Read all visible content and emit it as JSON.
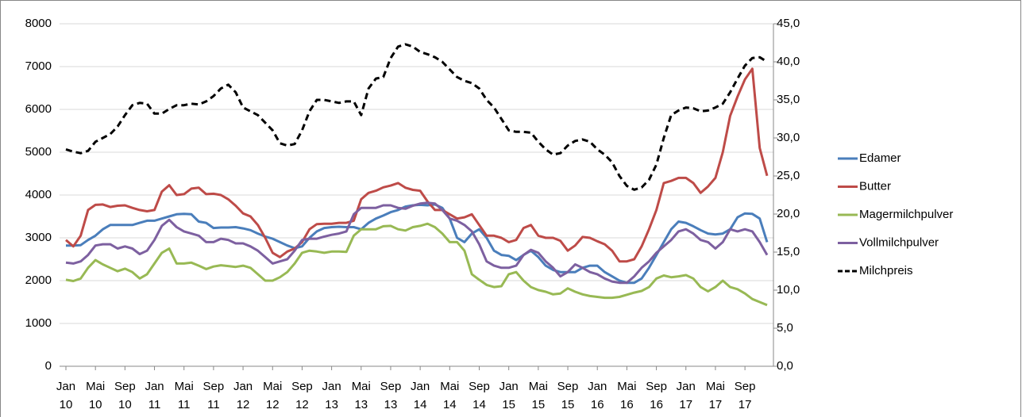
{
  "chart_data": {
    "type": "line",
    "categories": [
      "Jan 10",
      null,
      null,
      null,
      "Mai 10",
      null,
      null,
      null,
      "Sep 10",
      null,
      null,
      null,
      "Jan 11",
      null,
      null,
      null,
      "Mai 11",
      null,
      null,
      null,
      "Sep 11",
      null,
      null,
      null,
      "Jan 12",
      null,
      null,
      null,
      "Mai 12",
      null,
      null,
      null,
      "Sep 12",
      null,
      null,
      null,
      "Jan 13",
      null,
      null,
      null,
      "Mai 13",
      null,
      null,
      null,
      "Sep 13",
      null,
      null,
      null,
      "Jan 14",
      null,
      null,
      null,
      "Mai 14",
      null,
      null,
      null,
      "Sep 14",
      null,
      null,
      null,
      "Jan 15",
      null,
      null,
      null,
      "Mai 15",
      null,
      null,
      null,
      "Sep 15",
      null,
      null,
      null,
      "Jan 16",
      null,
      null,
      null,
      "Mai 16",
      null,
      null,
      null,
      "Sep 16",
      null,
      null,
      null,
      "Jan 17",
      null,
      null,
      null,
      "Mai 17",
      null,
      null,
      null,
      "Sep 17",
      null,
      null,
      null
    ],
    "ylim": [
      0,
      8000
    ],
    "yticks": [
      0,
      1000,
      2000,
      3000,
      4000,
      5000,
      6000,
      7000,
      8000
    ],
    "y2lim": [
      0,
      45
    ],
    "y2ticks": [
      {
        "value": 0,
        "label": "0,0"
      },
      {
        "value": 5,
        "label": "5,0"
      },
      {
        "value": 10,
        "label": "10,0"
      },
      {
        "value": 15,
        "label": "15,0"
      },
      {
        "value": 20,
        "label": "20,0"
      },
      {
        "value": 25,
        "label": "25,0"
      },
      {
        "value": 30,
        "label": "30,0"
      },
      {
        "value": 35,
        "label": "35,0"
      },
      {
        "value": 40,
        "label": "40,0"
      },
      {
        "value": 45,
        "label": "45,0"
      }
    ],
    "legend": "right",
    "series": [
      {
        "name": "Edamer",
        "color": "#4a7ebb",
        "values": [
          2820,
          2820,
          2830,
          2950,
          3050,
          3200,
          3300,
          3300,
          3300,
          3300,
          3350,
          3400,
          3400,
          3450,
          3500,
          3550,
          3560,
          3550,
          3380,
          3350,
          3230,
          3240,
          3240,
          3250,
          3220,
          3180,
          3100,
          3030,
          2980,
          2900,
          2820,
          2760,
          2800,
          3000,
          3150,
          3230,
          3250,
          3260,
          3250,
          3250,
          3200,
          3350,
          3450,
          3520,
          3600,
          3650,
          3730,
          3760,
          3770,
          3760,
          3780,
          3700,
          3450,
          3000,
          2900,
          3100,
          3200,
          3000,
          2700,
          2600,
          2580,
          2480,
          2600,
          2700,
          2550,
          2350,
          2250,
          2200,
          2200,
          2200,
          2300,
          2350,
          2350,
          2200,
          2100,
          2000,
          1950,
          1950,
          2050,
          2300,
          2600,
          2900,
          3200,
          3380,
          3350,
          3270,
          3180,
          3100,
          3080,
          3100,
          3200,
          3480,
          3570,
          3560,
          3450,
          2900
        ]
      },
      {
        "name": "Butter",
        "color": "#be4b48",
        "values": [
          2950,
          2800,
          3050,
          3650,
          3770,
          3780,
          3720,
          3750,
          3760,
          3700,
          3650,
          3620,
          3650,
          4080,
          4230,
          4000,
          4020,
          4150,
          4170,
          4020,
          4030,
          4000,
          3900,
          3750,
          3570,
          3500,
          3300,
          3000,
          2650,
          2550,
          2680,
          2750,
          2900,
          3200,
          3320,
          3330,
          3330,
          3350,
          3350,
          3400,
          3900,
          4050,
          4100,
          4180,
          4220,
          4280,
          4170,
          4120,
          4100,
          3850,
          3650,
          3650,
          3550,
          3450,
          3480,
          3550,
          3300,
          3050,
          3050,
          3000,
          2900,
          2950,
          3230,
          3300,
          3050,
          3000,
          3000,
          2930,
          2700,
          2820,
          3020,
          3000,
          2920,
          2850,
          2700,
          2450,
          2450,
          2500,
          2800,
          3200,
          3650,
          4280,
          4330,
          4400,
          4400,
          4280,
          4050,
          4200,
          4400,
          5000,
          5850,
          6300,
          6700,
          6950,
          5100,
          4450
        ]
      },
      {
        "name": "Magermilchpulver",
        "color": "#98b954",
        "values": [
          2020,
          1990,
          2050,
          2300,
          2480,
          2380,
          2300,
          2220,
          2280,
          2200,
          2050,
          2150,
          2400,
          2650,
          2750,
          2400,
          2400,
          2420,
          2350,
          2270,
          2330,
          2360,
          2340,
          2320,
          2350,
          2300,
          2150,
          2000,
          2000,
          2080,
          2200,
          2400,
          2650,
          2700,
          2680,
          2650,
          2680,
          2680,
          2670,
          3050,
          3200,
          3200,
          3200,
          3270,
          3280,
          3200,
          3170,
          3250,
          3280,
          3330,
          3250,
          3100,
          2900,
          2900,
          2700,
          2150,
          2020,
          1900,
          1850,
          1870,
          2150,
          2200,
          2000,
          1850,
          1780,
          1740,
          1680,
          1700,
          1820,
          1740,
          1680,
          1640,
          1620,
          1600,
          1600,
          1620,
          1670,
          1720,
          1760,
          1850,
          2050,
          2120,
          2080,
          2100,
          2130,
          2050,
          1850,
          1750,
          1850,
          2000,
          1850,
          1800,
          1700,
          1570,
          1500,
          1430
        ]
      },
      {
        "name": "Vollmilchpulver",
        "color": "#7d60a0",
        "values": [
          2420,
          2400,
          2450,
          2600,
          2820,
          2850,
          2850,
          2750,
          2800,
          2750,
          2620,
          2700,
          2950,
          3280,
          3420,
          3250,
          3150,
          3100,
          3050,
          2900,
          2900,
          2980,
          2950,
          2870,
          2870,
          2800,
          2700,
          2550,
          2400,
          2450,
          2500,
          2700,
          2950,
          2980,
          2980,
          3030,
          3070,
          3100,
          3150,
          3550,
          3700,
          3700,
          3700,
          3760,
          3760,
          3700,
          3680,
          3750,
          3800,
          3820,
          3800,
          3650,
          3450,
          3400,
          3300,
          3150,
          2850,
          2450,
          2350,
          2300,
          2300,
          2350,
          2600,
          2720,
          2650,
          2450,
          2300,
          2100,
          2200,
          2380,
          2300,
          2200,
          2150,
          2050,
          1980,
          1950,
          1950,
          2100,
          2300,
          2450,
          2650,
          2800,
          2950,
          3150,
          3200,
          3100,
          2950,
          2900,
          2750,
          2900,
          3200,
          3150,
          3200,
          3150,
          2900,
          2600
        ]
      },
      {
        "name": "Milchpreis",
        "color": "#000000",
        "axis": "y2",
        "line_style": "dashed",
        "values": [
          28.5,
          28.2,
          28,
          28.3,
          29.5,
          30,
          30.5,
          31.5,
          33,
          34.3,
          34.6,
          34.5,
          33.2,
          33.2,
          33.8,
          34.3,
          34.3,
          34.5,
          34.4,
          34.8,
          35.5,
          36.5,
          37,
          36,
          34,
          33.5,
          33,
          32,
          31,
          29.3,
          29,
          29.2,
          31,
          33.5,
          35,
          35,
          34.8,
          34.6,
          34.8,
          34.8,
          33,
          36.5,
          37.8,
          38,
          40.5,
          42,
          42.3,
          42,
          41.3,
          41,
          40.6,
          40,
          39,
          38,
          37.5,
          37.2,
          36.5,
          35,
          34,
          32.5,
          31,
          30.8,
          30.8,
          30.7,
          29.5,
          28.5,
          27.8,
          28,
          29,
          29.6,
          29.8,
          29.5,
          28.5,
          27.8,
          26.8,
          25,
          23.7,
          23.2,
          23.5,
          24.5,
          26.5,
          30,
          33,
          33.6,
          34,
          33.9,
          33.5,
          33.6,
          34,
          34.5,
          36,
          37.8,
          39.5,
          40.5,
          40.6,
          40
        ]
      }
    ]
  }
}
